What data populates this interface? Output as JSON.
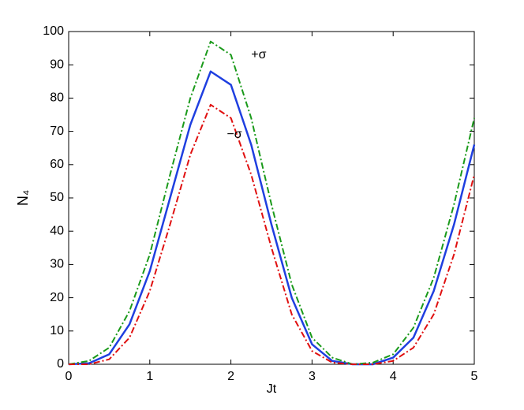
{
  "chart_data": {
    "type": "line",
    "x_label": "Jt",
    "y_label": "N₄",
    "x": [
      0,
      0.25,
      0.5,
      0.75,
      1,
      1.25,
      1.5,
      1.75,
      2,
      2.25,
      2.5,
      2.75,
      3,
      3.25,
      3.5,
      3.75,
      4,
      4.25,
      4.5,
      4.75,
      5
    ],
    "series": [
      {
        "color": "#1f3fe0",
        "linestyle": "solid",
        "values": [
          0,
          0.3,
          3,
          12,
          28,
          50,
          72,
          88,
          84,
          66,
          42,
          20,
          6,
          1,
          0,
          0,
          2,
          8,
          22,
          42,
          66
        ]
      },
      {
        "color": "#1a9a1a",
        "linestyle": "dashdot",
        "values": [
          0,
          1,
          5,
          16,
          33,
          57,
          80,
          97,
          93,
          74,
          48,
          24,
          8,
          2,
          0,
          0.5,
          3,
          11,
          26,
          48,
          74
        ]
      },
      {
        "color": "#e01010",
        "linestyle": "dashdot",
        "values": [
          0,
          0,
          1.5,
          8,
          22,
          42,
          63,
          78,
          74,
          57,
          35,
          15,
          4,
          0.5,
          0,
          0,
          1,
          5,
          15,
          33,
          57
        ]
      }
    ],
    "annotations": [
      {
        "text": "+σ",
        "x": 2.25,
        "y": 93
      },
      {
        "text": "−σ",
        "x": 1.95,
        "y": 69
      }
    ],
    "xlim": [
      0,
      5
    ],
    "xticks": [
      0,
      1,
      2,
      3,
      4,
      5
    ],
    "ylim": [
      0,
      100
    ],
    "yticks": [
      0,
      10,
      20,
      30,
      40,
      50,
      60,
      70,
      80,
      90,
      100
    ],
    "grid": false
  }
}
